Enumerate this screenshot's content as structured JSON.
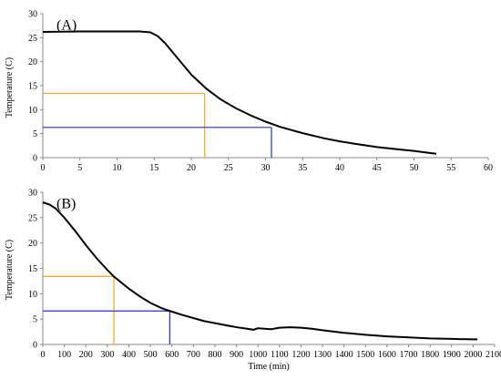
{
  "chart_data": [
    {
      "panel_label": "(A)",
      "type": "line",
      "xlabel": "",
      "ylabel": "Temperature (C)",
      "xlim": [
        0,
        60
      ],
      "ylim": [
        0,
        30
      ],
      "x_ticks": [
        0,
        5,
        10,
        15,
        20,
        25,
        30,
        35,
        40,
        45,
        50,
        55,
        60
      ],
      "y_ticks": [
        0,
        5,
        10,
        15,
        20,
        25,
        30
      ],
      "series": [
        {
          "color": "#000000",
          "points": [
            [
              0,
              26.2
            ],
            [
              5,
              26.3
            ],
            [
              10,
              26.3
            ],
            [
              13,
              26.3
            ],
            [
              14.5,
              26.1
            ],
            [
              15.5,
              25.3
            ],
            [
              16.5,
              23.8
            ],
            [
              18,
              21
            ],
            [
              20,
              17.3
            ],
            [
              22,
              14.4
            ],
            [
              24,
              12.1
            ],
            [
              26,
              10.3
            ],
            [
              28,
              8.8
            ],
            [
              30,
              7.5
            ],
            [
              32,
              6.4
            ],
            [
              35,
              5.1
            ],
            [
              38,
              4
            ],
            [
              40,
              3.4
            ],
            [
              42,
              2.9
            ],
            [
              45,
              2.2
            ],
            [
              48,
              1.7
            ],
            [
              50,
              1.4
            ],
            [
              52,
              1
            ],
            [
              53,
              0.8
            ]
          ]
        }
      ],
      "reference_lines": [
        {
          "color": "#f5a623",
          "x": 21.8,
          "y": 13.4
        },
        {
          "color": "#2233cc",
          "x": 30.8,
          "y": 6.3
        }
      ],
      "grid": false,
      "legend": "none"
    },
    {
      "panel_label": "(B)",
      "type": "line",
      "xlabel": "Time (min)",
      "ylabel": "Temperature (C)",
      "xlim": [
        0,
        2100
      ],
      "ylim": [
        0,
        30
      ],
      "x_ticks": [
        0,
        100,
        200,
        300,
        400,
        500,
        600,
        700,
        800,
        900,
        1000,
        1100,
        1200,
        1300,
        1400,
        1500,
        1600,
        1700,
        1800,
        1900,
        2000,
        2100
      ],
      "y_ticks": [
        0,
        5,
        10,
        15,
        20,
        25,
        30
      ],
      "series": [
        {
          "color": "#000000",
          "points": [
            [
              0,
              28
            ],
            [
              30,
              27.6
            ],
            [
              60,
              26.8
            ],
            [
              100,
              25
            ],
            [
              150,
              22.4
            ],
            [
              200,
              19.6
            ],
            [
              250,
              17
            ],
            [
              300,
              14.7
            ],
            [
              330,
              13.4
            ],
            [
              400,
              11
            ],
            [
              450,
              9.5
            ],
            [
              500,
              8.2
            ],
            [
              550,
              7.2
            ],
            [
              590,
              6.6
            ],
            [
              650,
              5.8
            ],
            [
              700,
              5.2
            ],
            [
              750,
              4.6
            ],
            [
              800,
              4.2
            ],
            [
              850,
              3.8
            ],
            [
              900,
              3.4
            ],
            [
              950,
              3.1
            ],
            [
              980,
              2.9
            ],
            [
              1000,
              3.2
            ],
            [
              1030,
              3.1
            ],
            [
              1060,
              3
            ],
            [
              1100,
              3.3
            ],
            [
              1150,
              3.4
            ],
            [
              1200,
              3.3
            ],
            [
              1250,
              3.1
            ],
            [
              1300,
              2.8
            ],
            [
              1400,
              2.3
            ],
            [
              1500,
              1.9
            ],
            [
              1600,
              1.6
            ],
            [
              1700,
              1.4
            ],
            [
              1800,
              1.2
            ],
            [
              1900,
              1.1
            ],
            [
              2000,
              1
            ],
            [
              2020,
              1
            ]
          ]
        }
      ],
      "reference_lines": [
        {
          "color": "#f5a623",
          "x": 330,
          "y": 13.4
        },
        {
          "color": "#2233cc",
          "x": 590,
          "y": 6.6
        }
      ],
      "grid": false,
      "legend": "none"
    }
  ]
}
